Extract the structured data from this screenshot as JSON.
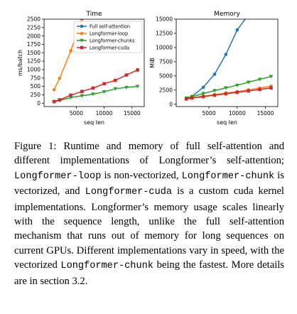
{
  "chart_data": [
    {
      "type": "line",
      "title": "Time",
      "xlabel": "seq len",
      "ylabel": "ms/batch",
      "xlim": [
        -800,
        17200
      ],
      "ylim": [
        -100,
        2500
      ],
      "xticks": [
        5000,
        10000,
        15000
      ],
      "yticks": [
        0,
        250,
        500,
        750,
        1000,
        1250,
        1500,
        1750,
        2000,
        2250,
        2500
      ],
      "grid": false,
      "legend": "top-right",
      "series": [
        {
          "name": "Full self-attention",
          "color": "#1f77b4",
          "marker": "circle",
          "x": [],
          "y": []
        },
        {
          "name": "Longformer-loop",
          "color": "#ff7f0e",
          "marker": "circle",
          "x": [
            1000,
            2000,
            4000,
            6000
          ],
          "y": [
            400,
            740,
            1560,
            2500
          ]
        },
        {
          "name": "Longformer-chunks",
          "color": "#2ca02c",
          "marker": "triangle",
          "x": [
            1000,
            2000,
            4000,
            6000,
            8000,
            10000,
            12000,
            14000,
            16000
          ],
          "y": [
            40,
            80,
            170,
            220,
            270,
            340,
            430,
            470,
            500
          ]
        },
        {
          "name": "Longformer-cuda",
          "color": "#d62728",
          "marker": "square",
          "x": [
            1000,
            2000,
            4000,
            6000,
            8000,
            10000,
            12000,
            14000,
            16000
          ],
          "y": [
            50,
            100,
            240,
            350,
            450,
            580,
            680,
            840,
            990
          ]
        }
      ]
    },
    {
      "type": "line",
      "title": "Memory",
      "xlabel": "seq len",
      "ylabel": "MiB",
      "xlim": [
        -800,
        17200
      ],
      "ylim": [
        -400,
        15000
      ],
      "xticks": [
        5000,
        10000,
        15000
      ],
      "yticks": [
        0,
        2500,
        5000,
        7500,
        10000,
        12500,
        15000
      ],
      "grid": false,
      "legend": "none",
      "series": [
        {
          "name": "Full self-attention",
          "color": "#1f77b4",
          "marker": "circle",
          "x": [
            1000,
            2000,
            4000,
            6000,
            8000,
            10000,
            12000
          ],
          "y": [
            1100,
            1400,
            3000,
            5300,
            8800,
            13100,
            15800
          ]
        },
        {
          "name": "Longformer-loop",
          "color": "#ff7f0e",
          "marker": "circle",
          "x": [
            1000,
            2000,
            4000,
            6000,
            8000,
            10000,
            12000,
            14000,
            16000
          ],
          "y": [
            1000,
            1150,
            1450,
            1700,
            2000,
            2250,
            2550,
            2850,
            3200
          ]
        },
        {
          "name": "Longformer-chunks",
          "color": "#2ca02c",
          "marker": "triangle",
          "x": [
            1000,
            2000,
            4000,
            6000,
            8000,
            10000,
            12000,
            14000,
            16000
          ],
          "y": [
            1100,
            1350,
            1900,
            2400,
            2900,
            3350,
            3900,
            4400,
            4900
          ]
        },
        {
          "name": "Longformer-cuda",
          "color": "#d62728",
          "marker": "square",
          "x": [
            1000,
            2000,
            4000,
            6000,
            8000,
            10000,
            12000,
            14000,
            16000
          ],
          "y": [
            950,
            1100,
            1350,
            1600,
            1850,
            2100,
            2350,
            2600,
            2900
          ]
        }
      ]
    }
  ],
  "caption": {
    "figure_label": "Figure 1:",
    "t1": " Runtime and memory of full self-attention and different implementations of Longformer’s self-attention; ",
    "m1": "Longformer-loop",
    "t2": " is non-vectorized, ",
    "m2": "Longformer-chunk",
    "t3": " is vectorized, and ",
    "m3": "Longformer-cuda",
    "t4": " is a custom cuda kernel implementations. Longformer’s memory usage scales linearly with the sequence length, unlike the full self-attention mechanism that runs out of memory for long sequences on current GPUs. Different implementations vary in speed, with the vectorized ",
    "m4": "Longformer-chunk",
    "t5": " being the fastest. More details are in section 3.2."
  }
}
